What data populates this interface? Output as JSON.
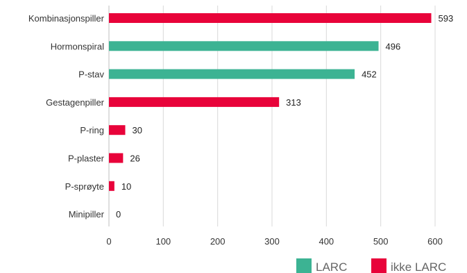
{
  "chart_data": {
    "type": "bar",
    "orientation": "horizontal",
    "categories": [
      "Kombinasjonspiller",
      "Hormonspiral",
      "P-stav",
      "Gestagenpiller",
      "P-ring",
      "P-plaster",
      "P-sprøyte",
      "Minipiller"
    ],
    "values": [
      593,
      496,
      452,
      313,
      30,
      26,
      10,
      0
    ],
    "groups": [
      "ikke LARC",
      "LARC",
      "LARC",
      "ikke LARC",
      "ikke LARC",
      "ikke LARC",
      "ikke LARC",
      "ikke LARC"
    ],
    "legend": [
      {
        "name": "LARC",
        "color": "#3cb393"
      },
      {
        "name": "ikke LARC",
        "color": "#e8033a"
      }
    ],
    "xlim": [
      0,
      600
    ],
    "xticks": [
      0,
      100,
      200,
      300,
      400,
      500,
      600
    ],
    "grid": true,
    "legend_position": "bottom-right"
  }
}
